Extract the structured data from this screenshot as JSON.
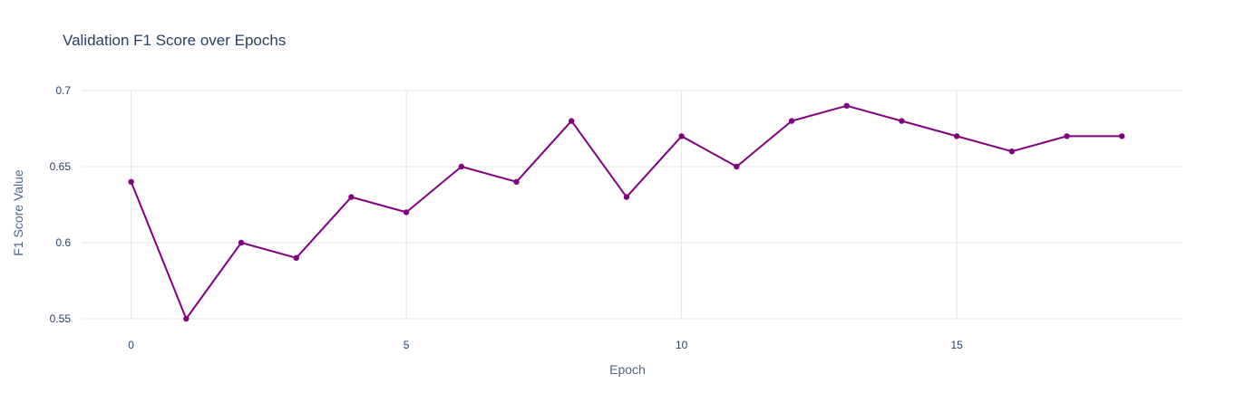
{
  "chart_data": {
    "type": "line",
    "title": "Validation F1 Score over Epochs",
    "xlabel": "Epoch",
    "ylabel": "F1 Score Value",
    "x": [
      0,
      1,
      2,
      3,
      4,
      5,
      6,
      7,
      8,
      9,
      10,
      11,
      12,
      13,
      14,
      15,
      16,
      17,
      18
    ],
    "series": [
      {
        "values": [
          0.64,
          0.55,
          0.6,
          0.59,
          0.63,
          0.62,
          0.65,
          0.64,
          0.68,
          0.63,
          0.67,
          0.65,
          0.68,
          0.69,
          0.68,
          0.67,
          0.66,
          0.67,
          0.67
        ],
        "color": "#800080"
      }
    ],
    "xlim": [
      -0.9,
      19.1
    ],
    "ylim": [
      0.55,
      0.7
    ],
    "xticks": [
      0,
      5,
      10,
      15
    ],
    "yticks": [
      0.55,
      0.6,
      0.65,
      0.7
    ],
    "xtick_labels": [
      "0",
      "5",
      "10",
      "15"
    ],
    "ytick_labels": [
      "0.55",
      "0.6",
      "0.65",
      "0.7"
    ],
    "grid": true,
    "legend": "none"
  }
}
